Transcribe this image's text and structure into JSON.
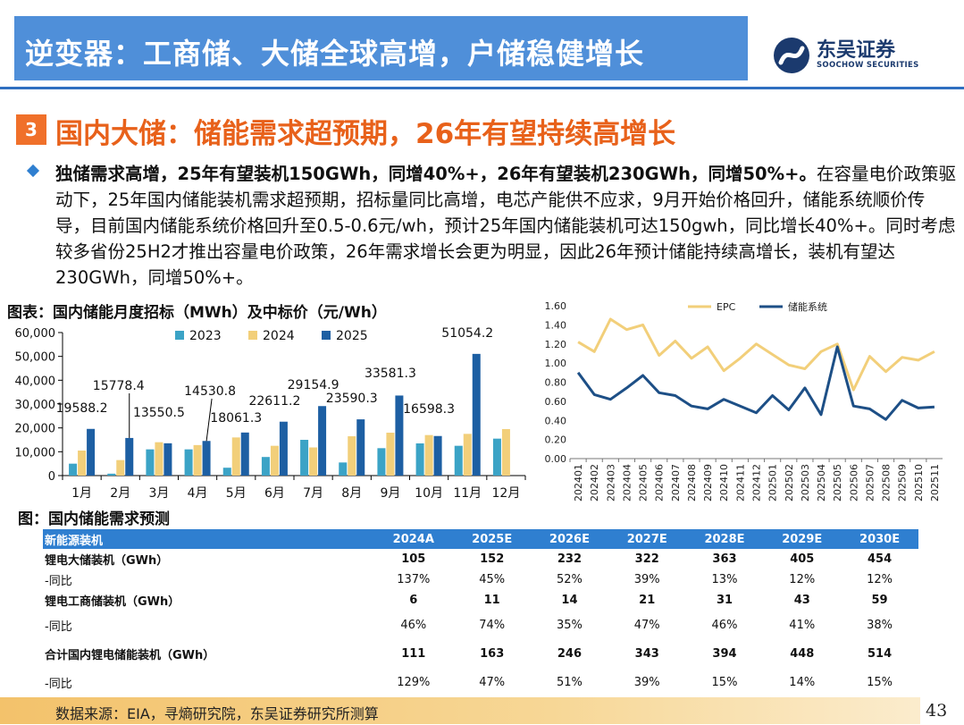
{
  "header": {
    "title": "逆变器：工商储、大储全球高增，户储稳健增长",
    "logo_name": "东吴证券",
    "logo_sub": "SOOCHOW SECURITIES"
  },
  "section": {
    "number": "3",
    "title": "国内大储：储能需求超预期，26年有望持续高增长"
  },
  "paragraph": {
    "bold": "独储需求高增，25年有望装机150GWh，同增40%+，26年有望装机230GWh，同增50%+。",
    "text": "在容量电价政策驱动下，25年国内储能装机需求超预期，招标量同比高增，电芯产能供不应求，9月开始价格回升，储能系统顺价传导，目前国内储能系统价格回升至0.5-0.6元/wh，预计25年国内储能装机可达150gwh，同比增长40%+。同时考虑较多省份25H2才推出容量电价政策，26年需求增长会更为明显，因此26年预计储能持续高增长，装机有望达230GWh，同增50%+。"
  },
  "chart1_title": "图表：国内储能月度招标（MWh）及中标价（元/Wh）",
  "table_title": "图：国内储能需求预测",
  "chart_data": [
    {
      "type": "bar",
      "title": "图表：国内储能月度招标（MWh）及中标价（元/Wh）",
      "categories": [
        "1月",
        "2月",
        "3月",
        "4月",
        "5月",
        "6月",
        "7月",
        "8月",
        "9月",
        "10月",
        "11月",
        "12月"
      ],
      "series": [
        {
          "name": "2023",
          "color": "#3ba3c6",
          "values": [
            5000,
            800,
            11000,
            11000,
            3300,
            7800,
            15000,
            5500,
            11500,
            13500,
            12500,
            15500
          ]
        },
        {
          "name": "2024",
          "color": "#f2cf7a",
          "values": [
            10500,
            6500,
            14000,
            12800,
            16000,
            12500,
            11800,
            16500,
            18000,
            17000,
            17500,
            19500
          ]
        },
        {
          "name": "2025",
          "color": "#1d5fa3",
          "values": [
            19588.2,
            15778.4,
            13550.5,
            14530.8,
            18061.3,
            22611.2,
            29154.9,
            23590.3,
            33581.3,
            16598.3,
            51054.2,
            null
          ]
        }
      ],
      "data_labels": [
        "19588.2",
        "15778.4",
        "13550.5",
        "14530.8",
        "18061.3",
        "22611.2",
        "29154.9",
        "23590.3",
        "33581.3",
        "16598.3",
        "51054.2"
      ],
      "yticks": [
        "0",
        "10,000",
        "20,000",
        "30,000",
        "40,000",
        "50,000",
        "60,000"
      ],
      "ylim": [
        0,
        60000
      ],
      "legend_position": "top"
    },
    {
      "type": "line",
      "x": [
        "202401",
        "202402",
        "202403",
        "202404",
        "202405",
        "202406",
        "202407",
        "202408",
        "202409",
        "202410",
        "202411",
        "202412",
        "202501",
        "202502",
        "202503",
        "202504",
        "202505",
        "202506",
        "202507",
        "202508",
        "202509",
        "202510",
        "202511"
      ],
      "series": [
        {
          "name": "EPC",
          "color": "#f2cf7a",
          "values": [
            1.22,
            1.12,
            1.46,
            1.35,
            1.4,
            1.08,
            1.23,
            1.05,
            1.17,
            0.92,
            1.05,
            1.2,
            1.09,
            0.98,
            0.94,
            1.12,
            1.2,
            0.72,
            1.07,
            0.91,
            1.06,
            1.03,
            1.12
          ]
        },
        {
          "name": "储能系统",
          "color": "#1d4f86",
          "values": [
            0.9,
            0.67,
            0.62,
            0.74,
            0.87,
            0.69,
            0.66,
            0.55,
            0.52,
            0.62,
            0.55,
            0.48,
            0.66,
            0.51,
            0.74,
            0.46,
            1.17,
            0.55,
            0.52,
            0.41,
            0.61,
            0.53,
            0.54
          ]
        }
      ],
      "yticks": [
        "0.00",
        "0.20",
        "0.40",
        "0.60",
        "0.80",
        "1.00",
        "1.20",
        "1.40",
        "1.60"
      ],
      "ylim": [
        0,
        1.6
      ],
      "legend_position": "top"
    }
  ],
  "table": {
    "headers": [
      "新能源装机",
      "2024A",
      "2025E",
      "2026E",
      "2027E",
      "2028E",
      "2029E",
      "2030E"
    ],
    "rows": [
      {
        "cls": "bold",
        "cells": [
          "锂电大储装机（GWh）",
          "105",
          "152",
          "232",
          "322",
          "363",
          "405",
          "454"
        ]
      },
      {
        "cls": "sub",
        "cells": [
          "-同比",
          "137%",
          "45%",
          "52%",
          "39%",
          "13%",
          "12%",
          "12%"
        ]
      },
      {
        "cls": "bold",
        "cells": [
          "锂电工商储装机（GWh）",
          "6",
          "11",
          "14",
          "21",
          "31",
          "43",
          "59"
        ]
      },
      {
        "cls": "sub gap",
        "cells": [
          "-同比",
          "46%",
          "74%",
          "35%",
          "47%",
          "46%",
          "41%",
          "38%"
        ]
      },
      {
        "cls": "bold gap",
        "cells": [
          "合计国内锂电储能装机（GWh）",
          "111",
          "163",
          "246",
          "343",
          "394",
          "448",
          "514"
        ]
      },
      {
        "cls": "sub gap",
        "cells": [
          "-同比",
          "129%",
          "47%",
          "51%",
          "39%",
          "15%",
          "14%",
          "15%"
        ]
      }
    ]
  },
  "footer": {
    "source": "数据来源：EIA，寻熵研究院，东吴证券研究所测算",
    "page": "43"
  }
}
